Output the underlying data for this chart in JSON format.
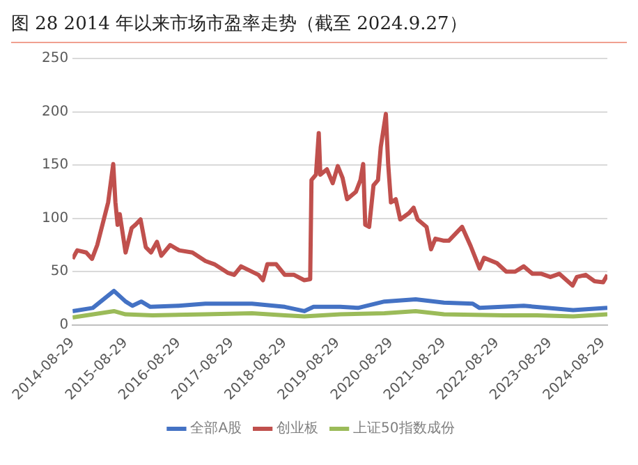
{
  "chart_data": {
    "type": "line",
    "title": "图 28 2014 年以来市场市盈率走势（截至 2024.9.27）",
    "ylim": [
      0,
      250
    ],
    "yticks": [
      0,
      50,
      100,
      150,
      200,
      250
    ],
    "xlim": [
      "2014-08-29",
      "2024-09-27"
    ],
    "xticks": [
      "2014-08-29",
      "2015-08-29",
      "2016-08-29",
      "2017-08-29",
      "2018-08-29",
      "2019-08-29",
      "2020-08-29",
      "2021-08-29",
      "2022-08-29",
      "2023-08-29",
      "2024-08-29"
    ],
    "grid": "y",
    "legend": "bottom",
    "series": [
      {
        "name": "全部A股",
        "color": "#4472c4",
        "x": [
          "2014-08-29",
          "2015-01-15",
          "2015-06-10",
          "2015-08-29",
          "2015-10-15",
          "2015-12-15",
          "2016-02-15",
          "2016-08-29",
          "2017-03-01",
          "2018-01-15",
          "2018-08-29",
          "2019-01-10",
          "2019-03-15",
          "2019-09-15",
          "2020-01-15",
          "2020-07-15",
          "2021-02-15",
          "2021-08-29",
          "2022-03-15",
          "2022-05-01",
          "2023-03-01",
          "2024-02-05",
          "2024-09-27"
        ],
        "values": [
          13,
          16,
          32,
          22,
          18,
          22,
          17,
          18,
          20,
          20,
          17,
          13,
          17,
          17,
          16,
          22,
          24,
          21,
          20,
          16,
          18,
          14,
          16
        ]
      },
      {
        "name": "创业板",
        "color": "#c0504d",
        "x": [
          "2014-08-29",
          "2014-09-30",
          "2014-12-01",
          "2015-01-10",
          "2015-02-15",
          "2015-04-01",
          "2015-05-01",
          "2015-06-05",
          "2015-06-20",
          "2015-07-05",
          "2015-07-20",
          "2015-08-29",
          "2015-10-10",
          "2015-11-05",
          "2015-12-10",
          "2016-01-15",
          "2016-02-20",
          "2016-04-01",
          "2016-05-01",
          "2016-07-01",
          "2016-09-01",
          "2016-12-01",
          "2017-03-01",
          "2017-05-01",
          "2017-08-01",
          "2017-09-15",
          "2017-11-01",
          "2018-03-01",
          "2018-04-01",
          "2018-05-01",
          "2018-07-01",
          "2018-08-29",
          "2018-11-01",
          "2019-01-10",
          "2019-02-20",
          "2019-03-01",
          "2019-04-01",
          "2019-04-20",
          "2019-05-01",
          "2019-06-15",
          "2019-07-25",
          "2019-08-29",
          "2019-10-01",
          "2019-11-01",
          "2020-01-01",
          "2020-02-01",
          "2020-02-20",
          "2020-03-05",
          "2020-04-01",
          "2020-05-01",
          "2020-06-01",
          "2020-06-20",
          "2020-07-25",
          "2020-08-10",
          "2020-08-29",
          "2020-10-01",
          "2020-11-01",
          "2021-01-01",
          "2021-02-01",
          "2021-03-01",
          "2021-05-01",
          "2021-06-01",
          "2021-07-01",
          "2021-08-29",
          "2021-10-01",
          "2022-01-01",
          "2022-03-01",
          "2022-05-01",
          "2022-06-01",
          "2022-08-29",
          "2022-11-01",
          "2023-01-01",
          "2023-03-01",
          "2023-05-01",
          "2023-07-01",
          "2023-09-01",
          "2023-11-01",
          "2024-02-01",
          "2024-03-01",
          "2024-05-01",
          "2024-07-01",
          "2024-08-29",
          "2024-09-27"
        ],
        "values": [
          62,
          70,
          68,
          62,
          75,
          99,
          115,
          151,
          115,
          94,
          104,
          68,
          91,
          94,
          99,
          73,
          68,
          78,
          65,
          75,
          70,
          68,
          60,
          57,
          49,
          47,
          55,
          47,
          42,
          57,
          57,
          47,
          47,
          42,
          43,
          136,
          141,
          180,
          141,
          146,
          133,
          149,
          138,
          118,
          125,
          136,
          151,
          94,
          92,
          131,
          136,
          167,
          198,
          151,
          115,
          118,
          99,
          105,
          110,
          99,
          92,
          71,
          81,
          79,
          79,
          92,
          74,
          53,
          63,
          58,
          50,
          50,
          55,
          48,
          48,
          45,
          48,
          37,
          45,
          47,
          41,
          40,
          47
        ]
      },
      {
        "name": "上证50指数成份",
        "color": "#9bbb59",
        "x": [
          "2014-08-29",
          "2015-06-10",
          "2015-08-29",
          "2016-03-01",
          "2017-03-01",
          "2018-01-15",
          "2018-08-29",
          "2019-01-10",
          "2019-09-15",
          "2020-07-15",
          "2021-02-15",
          "2021-08-29",
          "2022-10-15",
          "2023-06-01",
          "2024-02-05",
          "2024-09-27"
        ],
        "values": [
          7,
          13,
          10,
          9,
          10,
          11,
          9,
          8,
          10,
          11,
          13,
          10,
          9,
          9,
          8,
          10
        ]
      }
    ]
  }
}
